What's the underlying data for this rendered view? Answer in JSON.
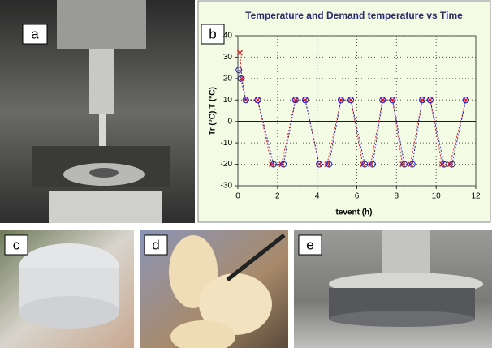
{
  "panel_labels": [
    "a",
    "b",
    "c",
    "d",
    "e"
  ],
  "chart_data": {
    "type": "line",
    "title": "Temperature and Demand temperature vs Time",
    "x_label": "tevent (h)",
    "y_label": "Tr (°C),T (°C)",
    "xlim": [
      0,
      12
    ],
    "xticks": [
      0,
      2,
      4,
      6,
      8,
      10,
      12
    ],
    "ylim": [
      -30,
      40
    ],
    "yticks": [
      -30,
      -20,
      -10,
      0,
      10,
      20,
      30,
      40
    ],
    "grid": true,
    "series": [
      {
        "color": "#e02020",
        "marker": "cross",
        "x": [
          0.1,
          0.2,
          0.4,
          1.0,
          1.7,
          2.2,
          2.9,
          3.4,
          4.1,
          4.5,
          5.2,
          5.7,
          6.3,
          6.7,
          7.3,
          7.8,
          8.3,
          8.7,
          9.3,
          9.7,
          10.3,
          10.7,
          11.5
        ],
        "values": [
          32,
          20,
          10,
          10,
          -20,
          -20,
          10,
          10,
          -20,
          -20,
          10,
          10,
          -20,
          -20,
          10,
          10,
          -20,
          -20,
          10,
          10,
          -20,
          -20,
          10
        ]
      },
      {
        "color": "#2020c0",
        "marker": "circle",
        "x": [
          0.05,
          0.15,
          0.4,
          1.0,
          1.8,
          2.3,
          2.9,
          3.4,
          4.1,
          4.6,
          5.2,
          5.7,
          6.4,
          6.8,
          7.3,
          7.8,
          8.4,
          8.8,
          9.3,
          9.7,
          10.4,
          10.8,
          11.5
        ],
        "values": [
          24,
          20,
          10,
          10,
          -20,
          -20,
          10,
          10,
          -20,
          -20,
          10,
          10,
          -20,
          -20,
          10,
          10,
          -20,
          -20,
          10,
          10,
          -20,
          -20,
          10
        ]
      }
    ]
  }
}
